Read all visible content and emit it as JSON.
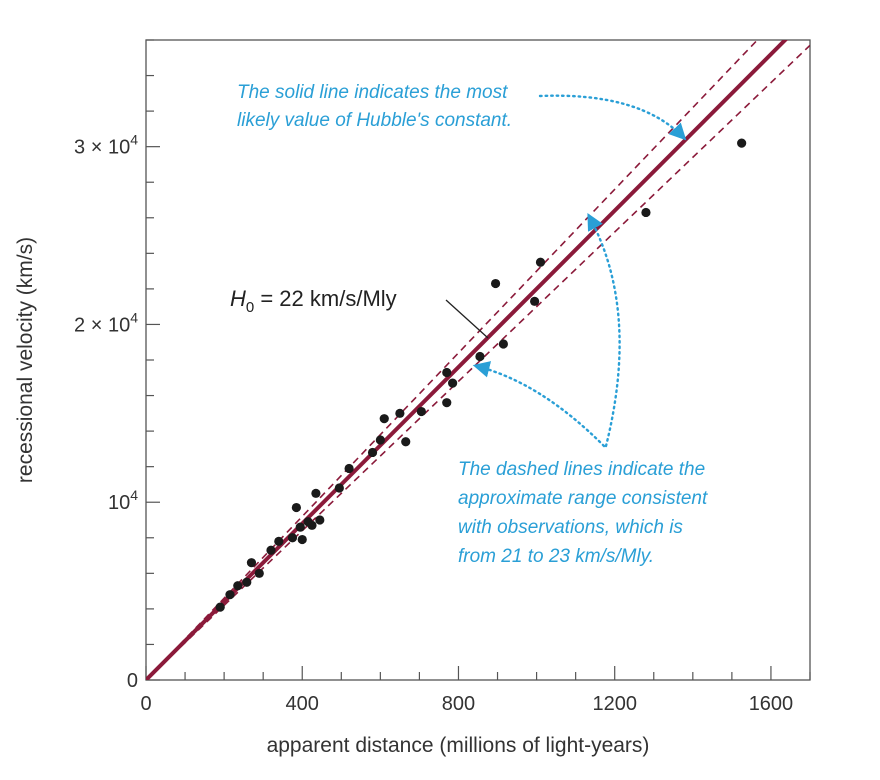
{
  "chart_data": {
    "type": "scatter",
    "xlabel": "apparent distance (millions of light-years)",
    "ylabel": "recessional velocity (km/s)",
    "xlim": [
      0,
      1700
    ],
    "ylim": [
      0,
      36000
    ],
    "x_ticks": [
      {
        "value": 0,
        "label": "0"
      },
      {
        "value": 400,
        "label": "400"
      },
      {
        "value": 800,
        "label": "800"
      },
      {
        "value": 1200,
        "label": "1200"
      },
      {
        "value": 1600,
        "label": "1600"
      }
    ],
    "x_minor_step": 100,
    "y_ticks": [
      {
        "value": 0,
        "label": "0"
      },
      {
        "value": 10000,
        "label": "10",
        "exp": "4"
      },
      {
        "value": 20000,
        "label": "2 × 10",
        "exp": "4"
      },
      {
        "value": 30000,
        "label": "3 × 10",
        "exp": "4"
      }
    ],
    "y_minor_step": 2000,
    "grid": false,
    "points": [
      {
        "x": 190,
        "y": 4100
      },
      {
        "x": 215,
        "y": 4800
      },
      {
        "x": 235,
        "y": 5300
      },
      {
        "x": 258,
        "y": 5500
      },
      {
        "x": 270,
        "y": 6600
      },
      {
        "x": 290,
        "y": 6000
      },
      {
        "x": 320,
        "y": 7300
      },
      {
        "x": 340,
        "y": 7800
      },
      {
        "x": 375,
        "y": 8000
      },
      {
        "x": 385,
        "y": 9700
      },
      {
        "x": 395,
        "y": 8600
      },
      {
        "x": 400,
        "y": 7900
      },
      {
        "x": 415,
        "y": 8900
      },
      {
        "x": 425,
        "y": 8700
      },
      {
        "x": 435,
        "y": 10500
      },
      {
        "x": 445,
        "y": 9000
      },
      {
        "x": 495,
        "y": 10800
      },
      {
        "x": 520,
        "y": 11900
      },
      {
        "x": 580,
        "y": 12800
      },
      {
        "x": 600,
        "y": 13500
      },
      {
        "x": 610,
        "y": 14700
      },
      {
        "x": 650,
        "y": 15000
      },
      {
        "x": 665,
        "y": 13400
      },
      {
        "x": 705,
        "y": 15100
      },
      {
        "x": 770,
        "y": 15600
      },
      {
        "x": 770,
        "y": 17300
      },
      {
        "x": 785,
        "y": 16700
      },
      {
        "x": 855,
        "y": 18200
      },
      {
        "x": 895,
        "y": 22300
      },
      {
        "x": 915,
        "y": 18900
      },
      {
        "x": 995,
        "y": 21300
      },
      {
        "x": 1010,
        "y": 23500
      },
      {
        "x": 1280,
        "y": 26300
      },
      {
        "x": 1525,
        "y": 30200
      }
    ],
    "fit_lines": [
      {
        "slope": 22,
        "style": "solid",
        "color": "#8b1a3a"
      },
      {
        "slope": 21,
        "style": "dashed",
        "color": "#8b1a3a"
      },
      {
        "slope": 23,
        "style": "dashed",
        "color": "#8b1a3a"
      }
    ],
    "fit_label": {
      "prefix": "H",
      "sub": "0",
      "text": " = 22 km/s/Mly"
    },
    "annotations": {
      "solid": [
        "The solid line indicates the most",
        "likely value of Hubble's constant."
      ],
      "dashed": [
        "The dashed lines indicate the",
        "approximate range consistent",
        "with observations, which is",
        "from 21 to 23 km/s/Mly."
      ]
    },
    "colors": {
      "fit": "#8b1a3a",
      "points": "#1a1a1a",
      "note": "#2a9fd6"
    }
  }
}
